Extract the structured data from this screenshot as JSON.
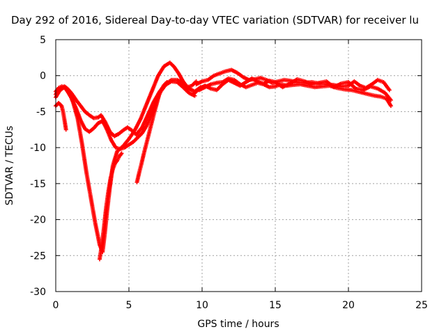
{
  "chart_data": {
    "type": "scatter",
    "title": "Day 292 of 2016, Sidereal Day-to-day VTEC variation (SDTVAR) for receiver lu",
    "xlabel": "GPS time / hours",
    "ylabel": "SDTVAR / TECUs",
    "xlim": [
      0,
      25
    ],
    "ylim": [
      -30,
      5
    ],
    "xticks": [
      0,
      5,
      10,
      15,
      20,
      25
    ],
    "yticks": [
      5,
      0,
      -5,
      -10,
      -15,
      -20,
      -25,
      -30
    ],
    "grid": true,
    "marker": "plus",
    "color": "#ff0000",
    "series": [
      {
        "x": [
          0.0,
          0.3,
          0.6,
          0.9,
          1.2,
          1.5,
          1.8,
          2.1,
          2.4,
          2.7,
          3.0,
          3.2,
          3.35,
          3.5,
          3.7,
          3.9,
          4.2,
          4.6,
          5.0,
          5.4,
          5.8,
          6.2,
          6.6,
          7.0,
          7.4,
          7.8,
          8.1,
          8.4,
          8.7,
          9.0,
          9.3,
          9.6
        ],
        "y": [
          -3.0,
          -2.0,
          -1.6,
          -2.3,
          -3.8,
          -6.0,
          -9.5,
          -13.5,
          -17.0,
          -20.5,
          -23.5,
          -24.5,
          -22.0,
          -19.0,
          -15.5,
          -12.5,
          -10.5,
          -9.8,
          -8.8,
          -7.6,
          -6.0,
          -4.0,
          -2.0,
          0.0,
          1.3,
          1.8,
          1.2,
          0.3,
          -0.8,
          -1.6,
          -1.4,
          -0.8
        ]
      },
      {
        "x": [
          0.0,
          0.2,
          0.4,
          0.6,
          0.8,
          1.1,
          1.4,
          1.7,
          2.0,
          2.3,
          2.6,
          2.9,
          3.1,
          3.4,
          3.7,
          4.0,
          4.3,
          4.6,
          4.9,
          5.2,
          5.5,
          5.9,
          6.3,
          6.7,
          7.1,
          7.5,
          7.9,
          8.3,
          8.7,
          9.1,
          9.5,
          9.9
        ],
        "y": [
          -2.6,
          -1.9,
          -1.6,
          -1.5,
          -1.8,
          -2.5,
          -3.4,
          -4.2,
          -5.0,
          -5.5,
          -5.9,
          -5.8,
          -5.5,
          -6.5,
          -7.8,
          -8.4,
          -8.1,
          -7.6,
          -7.2,
          -7.6,
          -8.2,
          -7.2,
          -5.4,
          -3.6,
          -2.2,
          -1.2,
          -0.6,
          -0.6,
          -1.0,
          -1.8,
          -2.2,
          -1.6
        ]
      },
      {
        "x": [
          0.0,
          0.2,
          0.4,
          0.6,
          0.8,
          1.1,
          1.4,
          1.7,
          2.0,
          2.3,
          2.6,
          2.9,
          3.2,
          3.5,
          3.8,
          4.1,
          4.4,
          4.7,
          5.0,
          5.3,
          5.6,
          5.9,
          6.2,
          6.5,
          6.8,
          7.1,
          7.5,
          7.9,
          8.3,
          8.7,
          9.1,
          9.5
        ],
        "y": [
          -2.2,
          -1.7,
          -1.5,
          -1.6,
          -2.2,
          -3.2,
          -4.6,
          -6.2,
          -7.4,
          -7.8,
          -7.3,
          -6.6,
          -6.3,
          -7.5,
          -9.0,
          -10.0,
          -10.2,
          -10.0,
          -9.6,
          -9.2,
          -8.6,
          -8.0,
          -7.0,
          -5.5,
          -3.8,
          -2.4,
          -1.3,
          -0.8,
          -0.9,
          -1.6,
          -2.4,
          -2.8
        ]
      },
      {
        "x": [
          0.0,
          0.2,
          0.4,
          0.5,
          0.6,
          0.7
        ],
        "y": [
          -4.2,
          -3.8,
          -4.2,
          -5.0,
          -6.2,
          -7.5
        ]
      },
      {
        "x": [
          3.0,
          3.15,
          3.3,
          3.45,
          3.6,
          3.75,
          3.9,
          4.05,
          4.2,
          4.35,
          4.5
        ],
        "y": [
          -25.5,
          -23.5,
          -21.0,
          -18.2,
          -16.0,
          -14.2,
          -13.0,
          -12.2,
          -11.8,
          -11.2,
          -10.8
        ]
      },
      {
        "x": [
          5.55,
          5.7,
          5.85,
          6.0,
          6.15,
          6.3,
          6.45,
          6.6,
          6.75,
          6.9,
          7.05,
          7.2,
          7.4,
          7.6
        ],
        "y": [
          -14.8,
          -13.5,
          -12.3,
          -11.0,
          -9.8,
          -8.6,
          -7.4,
          -6.2,
          -5.0,
          -3.9,
          -2.8,
          -2.0,
          -1.3,
          -0.9
        ]
      },
      {
        "x": [
          9.6,
          10.0,
          10.4,
          10.8,
          11.2,
          11.6,
          12.0,
          12.4,
          12.8,
          13.2,
          13.6,
          14.0,
          14.4,
          14.8,
          15.2,
          15.6,
          16.0,
          16.5,
          17.0,
          17.5,
          18.0,
          18.5,
          19.0,
          19.5,
          20.0,
          20.4,
          20.8,
          21.2,
          21.6,
          22.0,
          22.4,
          22.8
        ],
        "y": [
          -1.2,
          -0.8,
          -0.6,
          0.0,
          0.3,
          0.6,
          0.8,
          0.4,
          -0.2,
          -0.6,
          -0.5,
          -0.3,
          -0.6,
          -1.0,
          -0.8,
          -0.6,
          -0.7,
          -0.9,
          -1.0,
          -0.9,
          -1.1,
          -1.2,
          -1.3,
          -1.5,
          -1.4,
          -0.8,
          -1.4,
          -1.7,
          -1.2,
          -0.6,
          -0.9,
          -2.0
        ]
      },
      {
        "x": [
          9.8,
          10.2,
          10.6,
          11.0,
          11.4,
          11.8,
          12.2,
          12.6,
          13.0,
          13.4,
          13.8,
          14.2,
          14.6,
          15.0,
          15.4,
          15.8,
          16.2,
          16.7,
          17.2,
          17.7,
          18.2,
          18.7,
          19.2,
          19.7,
          20.2,
          20.6,
          21.0,
          21.4,
          21.8,
          22.2,
          22.6,
          22.9
        ],
        "y": [
          -2.0,
          -1.6,
          -1.2,
          -1.0,
          -0.9,
          -0.4,
          -0.6,
          -1.2,
          -1.6,
          -1.3,
          -1.0,
          -1.2,
          -1.6,
          -1.5,
          -1.2,
          -1.4,
          -1.3,
          -1.2,
          -1.4,
          -1.6,
          -1.5,
          -1.4,
          -1.7,
          -1.9,
          -2.0,
          -2.2,
          -2.4,
          -2.6,
          -2.8,
          -2.9,
          -3.2,
          -4.2
        ]
      },
      {
        "x": [
          9.4,
          9.8,
          10.2,
          10.6,
          11.0,
          11.4,
          11.8,
          12.2,
          12.6,
          13.0,
          13.4,
          13.8,
          14.2,
          14.6,
          15.0,
          15.5,
          16.0,
          16.5,
          17.0,
          17.5,
          18.0,
          18.5,
          19.0,
          19.5,
          20.0,
          20.5,
          21.0,
          21.5,
          22.0,
          22.5,
          22.9
        ],
        "y": [
          -2.6,
          -1.8,
          -1.4,
          -1.8,
          -2.0,
          -1.2,
          -0.6,
          -1.0,
          -1.4,
          -0.9,
          -0.4,
          -0.8,
          -1.1,
          -0.7,
          -0.9,
          -1.6,
          -1.1,
          -0.5,
          -0.8,
          -1.2,
          -1.0,
          -0.8,
          -1.6,
          -1.1,
          -0.9,
          -1.8,
          -2.0,
          -1.5,
          -1.8,
          -2.4,
          -3.4
        ]
      }
    ]
  }
}
